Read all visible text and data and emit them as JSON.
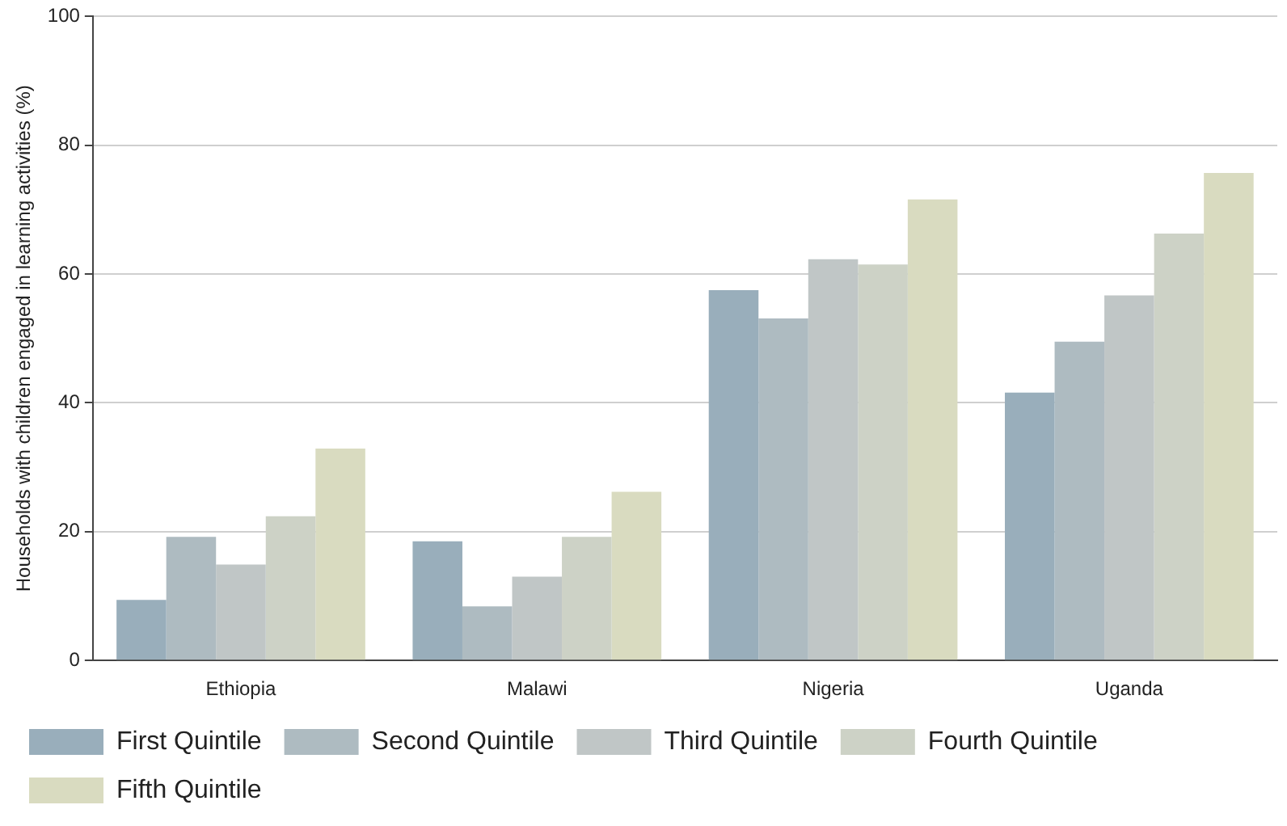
{
  "chart_data": {
    "type": "bar",
    "ylabel": "Households with children engaged in learning activities (%)",
    "categories": [
      "Ethiopia",
      "Malawi",
      "Nigeria",
      "Uganda"
    ],
    "series": [
      {
        "name": "First Quintile",
        "color": "#99aebb",
        "values": [
          9.4,
          18.5,
          57.5,
          41.6
        ]
      },
      {
        "name": "Second Quintile",
        "color": "#aebbc1",
        "values": [
          19.2,
          8.4,
          53.1,
          49.5
        ]
      },
      {
        "name": "Third Quintile",
        "color": "#c0c6c6",
        "values": [
          14.9,
          13,
          62.3,
          56.7
        ]
      },
      {
        "name": "Fourth Quintile",
        "color": "#cdd2c6",
        "values": [
          22.4,
          19.2,
          61.5,
          66.3
        ]
      },
      {
        "name": "Fifth Quintile",
        "color": "#d9dbc0",
        "values": [
          32.9,
          26.2,
          71.6,
          75.7
        ]
      }
    ],
    "ylim": [
      0,
      100
    ],
    "yticks": [
      0,
      20,
      40,
      60,
      80,
      100
    ],
    "grid": "y",
    "legend": "bottom"
  }
}
